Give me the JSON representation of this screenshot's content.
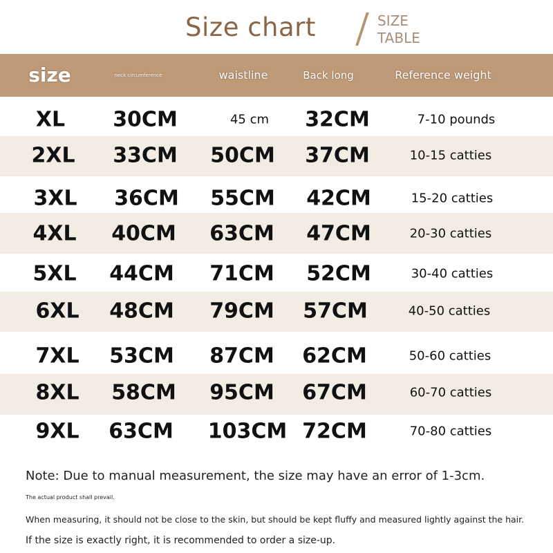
{
  "title": "Size chart",
  "subtitle_line1": "SIZE",
  "subtitle_line2": "TABLE",
  "colors": {
    "header": "#bf9a78",
    "title": "#8a6647",
    "stripe": "#f3ece4"
  },
  "headers": [
    "size",
    "neck circumference",
    "waistline",
    "Back long",
    "Reference weight"
  ],
  "rows": [
    [
      "XL",
      "30CM",
      "45 cm",
      "32CM",
      "7-10 pounds"
    ],
    [
      "2XL",
      "33CM",
      "50CM",
      "37CM",
      "10-15 catties"
    ],
    [
      "3XL",
      "36CM",
      "55CM",
      "42CM",
      "15-20 catties"
    ],
    [
      "4XL",
      "40CM",
      "63CM",
      "47CM",
      "20-30 catties"
    ],
    [
      "5XL",
      "44CM",
      "71CM",
      "52CM",
      "30-40 catties"
    ],
    [
      "6XL",
      "48CM",
      "79CM",
      "57CM",
      "40-50 catties"
    ],
    [
      "7XL",
      "53CM",
      "87CM",
      "62CM",
      "50-60 catties"
    ],
    [
      "8XL",
      "58CM",
      "95CM",
      "67CM",
      "60-70 catties"
    ],
    [
      "9XL",
      "63CM",
      "103CM",
      "72CM",
      "70-80 catties"
    ]
  ],
  "notes": [
    "Note: Due to manual measurement, the size may have an error of 1-3cm.",
    "The actual product shall prevail.",
    "When measuring, it should not be close to the skin, but should be kept fluffy and measured lightly against the hair.",
    "If the size is exactly right, it is recommended to order a size-up."
  ]
}
